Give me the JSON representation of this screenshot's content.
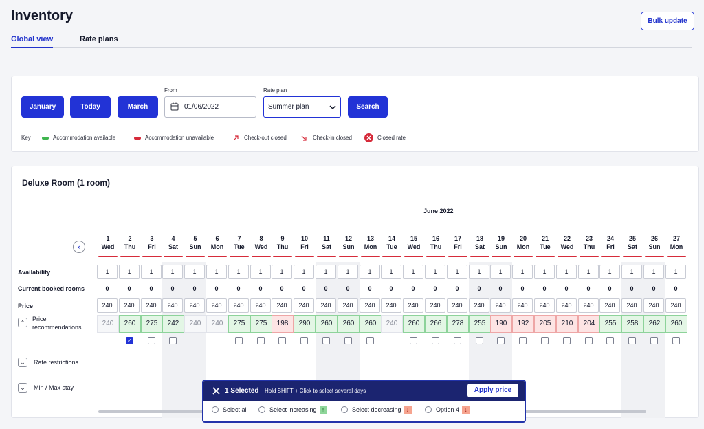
{
  "page": {
    "title": "Inventory",
    "bulk_update": "Bulk update"
  },
  "tabs": [
    {
      "label": "Global view",
      "active": true
    },
    {
      "label": "Rate plans",
      "active": false
    }
  ],
  "filters": {
    "january": "January",
    "today": "Today",
    "march": "March",
    "from_label": "From",
    "from_value": "01/06/2022",
    "rate_plan_label": "Rate plan",
    "rate_plan_value": "Summer plan",
    "search": "Search"
  },
  "key": {
    "label": "Key",
    "available": "Accommodation available",
    "unavailable": "Accommodation unavailable",
    "checkout_closed": "Check-out closed",
    "checkin_closed": "Check-in closed",
    "closed_rate": "Closed rate",
    "colors": {
      "available": "#3fb54e",
      "unavailable": "#d62b3a",
      "accent": "#2233d6"
    }
  },
  "room": {
    "title": "Deluxe Room (1 room)",
    "month": "June 2022",
    "days": [
      {
        "num": "1",
        "name": "Wed"
      },
      {
        "num": "2",
        "name": "Thu"
      },
      {
        "num": "3",
        "name": "Fri"
      },
      {
        "num": "4",
        "name": "Sat"
      },
      {
        "num": "5",
        "name": "Sun"
      },
      {
        "num": "6",
        "name": "Mon"
      },
      {
        "num": "7",
        "name": "Tue"
      },
      {
        "num": "8",
        "name": "Wed"
      },
      {
        "num": "9",
        "name": "Thu"
      },
      {
        "num": "10",
        "name": "Fri"
      },
      {
        "num": "11",
        "name": "Sat"
      },
      {
        "num": "12",
        "name": "Sun"
      },
      {
        "num": "13",
        "name": "Mon"
      },
      {
        "num": "14",
        "name": "Tue"
      },
      {
        "num": "15",
        "name": "Wed"
      },
      {
        "num": "16",
        "name": "Thu"
      },
      {
        "num": "17",
        "name": "Fri"
      },
      {
        "num": "18",
        "name": "Sat"
      },
      {
        "num": "19",
        "name": "Sun"
      },
      {
        "num": "20",
        "name": "Mon"
      },
      {
        "num": "21",
        "name": "Tue"
      },
      {
        "num": "22",
        "name": "Wed"
      },
      {
        "num": "23",
        "name": "Thu"
      },
      {
        "num": "24",
        "name": "Fri"
      },
      {
        "num": "25",
        "name": "Sat"
      },
      {
        "num": "26",
        "name": "Sun"
      },
      {
        "num": "27",
        "name": "Mon"
      }
    ],
    "rows": {
      "availability": "Availability",
      "booked": "Current booked rooms",
      "price": "Price",
      "recommendations": "Price recommendations",
      "rate_restrictions": "Rate restrictions",
      "min_max": "Min / Max stay"
    },
    "availability": [
      "1",
      "1",
      "1",
      "1",
      "1",
      "1",
      "1",
      "1",
      "1",
      "1",
      "1",
      "1",
      "1",
      "1",
      "1",
      "1",
      "1",
      "1",
      "1",
      "1",
      "1",
      "1",
      "1",
      "1",
      "1",
      "1",
      "1"
    ],
    "booked": [
      "0",
      "0",
      "0",
      "0",
      "0",
      "0",
      "0",
      "0",
      "0",
      "0",
      "0",
      "0",
      "0",
      "0",
      "0",
      "0",
      "0",
      "0",
      "0",
      "0",
      "0",
      "0",
      "0",
      "0",
      "0",
      "0",
      "0"
    ],
    "price": [
      "240",
      "240",
      "240",
      "240",
      "240",
      "240",
      "240",
      "240",
      "240",
      "240",
      "240",
      "240",
      "240",
      "240",
      "240",
      "240",
      "240",
      "240",
      "240",
      "240",
      "240",
      "240",
      "240",
      "240",
      "240",
      "240",
      "240"
    ],
    "recommendations": [
      {
        "v": "240",
        "s": "grey"
      },
      {
        "v": "260",
        "s": "up"
      },
      {
        "v": "275",
        "s": "up"
      },
      {
        "v": "242",
        "s": "up"
      },
      {
        "v": "240",
        "s": "grey"
      },
      {
        "v": "240",
        "s": "grey"
      },
      {
        "v": "275",
        "s": "up"
      },
      {
        "v": "275",
        "s": "up"
      },
      {
        "v": "198",
        "s": "down"
      },
      {
        "v": "290",
        "s": "up"
      },
      {
        "v": "260",
        "s": "up"
      },
      {
        "v": "260",
        "s": "up"
      },
      {
        "v": "260",
        "s": "up"
      },
      {
        "v": "240",
        "s": "grey"
      },
      {
        "v": "260",
        "s": "up"
      },
      {
        "v": "266",
        "s": "up"
      },
      {
        "v": "278",
        "s": "up"
      },
      {
        "v": "255",
        "s": "up"
      },
      {
        "v": "190",
        "s": "down"
      },
      {
        "v": "192",
        "s": "down"
      },
      {
        "v": "205",
        "s": "down"
      },
      {
        "v": "210",
        "s": "down"
      },
      {
        "v": "204",
        "s": "down"
      },
      {
        "v": "255",
        "s": "up"
      },
      {
        "v": "258",
        "s": "up"
      },
      {
        "v": "262",
        "s": "up"
      },
      {
        "v": "260",
        "s": "up"
      }
    ],
    "checked_days": [
      "2"
    ],
    "checkbox_days": [
      "2",
      "3",
      "4",
      "7",
      "8",
      "9",
      "10",
      "11",
      "12",
      "13",
      "15",
      "16",
      "17",
      "18",
      "19",
      "20",
      "21",
      "22",
      "23",
      "24",
      "25",
      "26",
      "27"
    ]
  },
  "popup": {
    "selected": "1 Selected",
    "hint": "Hold SHIFT + Click to select several days",
    "apply": "Apply price",
    "options": [
      "Select all",
      "Select increasing",
      "Select decreasing",
      "Option 4"
    ]
  }
}
